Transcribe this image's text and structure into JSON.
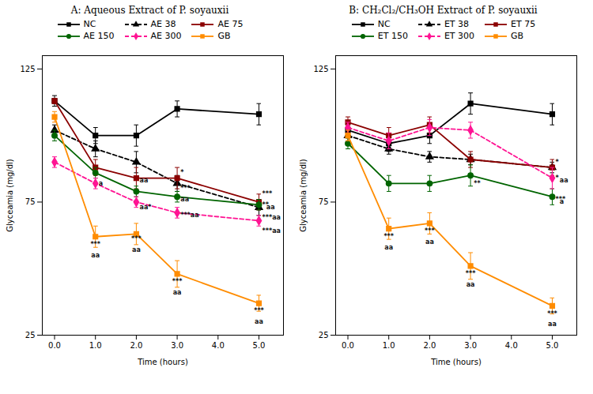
{
  "chart_data": [
    {
      "type": "line",
      "title": "A: Aqueous Extract of P. soyauxii",
      "x": [
        0,
        1,
        2,
        3,
        5
      ],
      "xlabel": "Time (hours)",
      "ylabel": "Glyceamia (mg/dl)",
      "xlim": [
        -0.3,
        5.6
      ],
      "xticks": [
        0,
        1,
        2,
        3,
        4,
        5
      ],
      "ylim": [
        25,
        130
      ],
      "yticks": [
        25,
        75,
        125
      ],
      "legend": "top",
      "series": [
        {
          "name": "NC",
          "color": "#000000",
          "line_style": "solid",
          "marker": "square",
          "values": [
            113,
            100,
            100,
            110,
            108
          ],
          "errors": [
            2,
            3,
            4,
            3,
            4
          ]
        },
        {
          "name": "AE 38",
          "color": "#000000",
          "line_style": "dashed",
          "marker": "triangle",
          "values": [
            102,
            95,
            90,
            82,
            73
          ],
          "errors": [
            2,
            3,
            4,
            3,
            3
          ]
        },
        {
          "name": "AE 75",
          "color": "#8B0000",
          "line_style": "solid",
          "marker": "square",
          "values": [
            113,
            88,
            84,
            84,
            75
          ],
          "errors": [
            1,
            3,
            4,
            4,
            3
          ]
        },
        {
          "name": "AE 150",
          "color": "#006400",
          "line_style": "solid",
          "marker": "circle",
          "values": [
            100,
            86,
            79,
            77,
            74
          ],
          "errors": [
            2,
            2,
            2,
            2,
            2
          ]
        },
        {
          "name": "AE 300",
          "color": "#FF1493",
          "line_style": "dashed",
          "marker": "diamond",
          "values": [
            90,
            82,
            75,
            71,
            68
          ],
          "errors": [
            2,
            2,
            2,
            2,
            2
          ]
        },
        {
          "name": "GB",
          "color": "#FF8C00",
          "line_style": "solid",
          "marker": "square",
          "values": [
            107,
            62,
            63,
            48,
            37
          ],
          "errors": [
            2,
            4,
            4,
            5,
            3
          ]
        }
      ],
      "annotations": [
        {
          "text": "a",
          "x": 1.08,
          "y": 83
        },
        {
          "text": "***",
          "x": 1.0,
          "y": 60
        },
        {
          "text": "aa",
          "x": 1.0,
          "y": 56
        },
        {
          "text": "aa",
          "x": 2.08,
          "y": 84
        },
        {
          "text": "aa*",
          "x": 2.08,
          "y": 74
        },
        {
          "text": "***",
          "x": 2.0,
          "y": 62
        },
        {
          "text": "aa",
          "x": 2.0,
          "y": 58
        },
        {
          "text": "*",
          "x": 3.08,
          "y": 87
        },
        {
          "text": "***",
          "x": 3.08,
          "y": 81
        },
        {
          "text": "aa",
          "x": 3.08,
          "y": 77
        },
        {
          "text": "***aa",
          "x": 3.08,
          "y": 71
        },
        {
          "text": "***",
          "x": 3.0,
          "y": 46
        },
        {
          "text": "aa",
          "x": 3.0,
          "y": 42
        },
        {
          "text": "***",
          "x": 5.08,
          "y": 79
        },
        {
          "text": "**",
          "x": 5.08,
          "y": 75
        },
        {
          "text": "aa",
          "x": 5.18,
          "y": 74
        },
        {
          "text": "***aa",
          "x": 5.08,
          "y": 70
        },
        {
          "text": "***aa",
          "x": 5.08,
          "y": 65
        },
        {
          "text": "***",
          "x": 5.0,
          "y": 35
        },
        {
          "text": "aa",
          "x": 5.0,
          "y": 31
        }
      ]
    },
    {
      "type": "line",
      "title": "B: CH₂Cl₂/CH₃OH Extract of P. soyauxii",
      "x": [
        0,
        1,
        2,
        3,
        5
      ],
      "xlabel": "Time (hours)",
      "ylabel": "Glyceamia (mg/dl)",
      "xlim": [
        -0.3,
        5.6
      ],
      "xticks": [
        0,
        1,
        2,
        3,
        4,
        5
      ],
      "ylim": [
        25,
        130
      ],
      "yticks": [
        25,
        75,
        125
      ],
      "legend": "top",
      "series": [
        {
          "name": "NC",
          "color": "#000000",
          "line_style": "solid",
          "marker": "square",
          "values": [
            102,
            97,
            100,
            112,
            108
          ],
          "errors": [
            2,
            3,
            3,
            4,
            4
          ]
        },
        {
          "name": "ET 38",
          "color": "#000000",
          "line_style": "dashed",
          "marker": "triangle",
          "values": [
            100,
            95,
            92,
            91,
            88
          ],
          "errors": [
            2,
            2,
            2,
            2,
            2
          ]
        },
        {
          "name": "ET 75",
          "color": "#8B0000",
          "line_style": "solid",
          "marker": "square",
          "values": [
            105,
            100,
            104,
            91,
            88
          ],
          "errors": [
            2,
            3,
            3,
            3,
            3
          ]
        },
        {
          "name": "ET 150",
          "color": "#006400",
          "line_style": "solid",
          "marker": "circle",
          "values": [
            97,
            82,
            82,
            85,
            77
          ],
          "errors": [
            2,
            3,
            3,
            4,
            3
          ]
        },
        {
          "name": "ET 300",
          "color": "#FF1493",
          "line_style": "dashed",
          "marker": "diamond",
          "values": [
            103,
            98,
            103,
            102,
            84
          ],
          "errors": [
            2,
            3,
            3,
            3,
            4
          ]
        },
        {
          "name": "GB",
          "color": "#FF8C00",
          "line_style": "solid",
          "marker": "square",
          "values": [
            100,
            65,
            67,
            51,
            36
          ],
          "errors": [
            2,
            4,
            4,
            5,
            3
          ]
        }
      ],
      "annotations": [
        {
          "text": "***",
          "x": 1.0,
          "y": 63
        },
        {
          "text": "aa",
          "x": 1.0,
          "y": 59
        },
        {
          "text": "***",
          "x": 2.0,
          "y": 65
        },
        {
          "text": "aa",
          "x": 2.0,
          "y": 61
        },
        {
          "text": "**",
          "x": 3.08,
          "y": 83
        },
        {
          "text": "***",
          "x": 3.0,
          "y": 49
        },
        {
          "text": "aa",
          "x": 3.0,
          "y": 45
        },
        {
          "text": "*",
          "x": 5.08,
          "y": 91
        },
        {
          "text": "*",
          "x": 5.08,
          "y": 85
        },
        {
          "text": "aa",
          "x": 5.18,
          "y": 84
        },
        {
          "text": "***",
          "x": 5.08,
          "y": 77
        },
        {
          "text": "a",
          "x": 5.18,
          "y": 76
        },
        {
          "text": "***",
          "x": 5.0,
          "y": 34
        },
        {
          "text": "aa",
          "x": 5.0,
          "y": 30
        }
      ]
    }
  ]
}
